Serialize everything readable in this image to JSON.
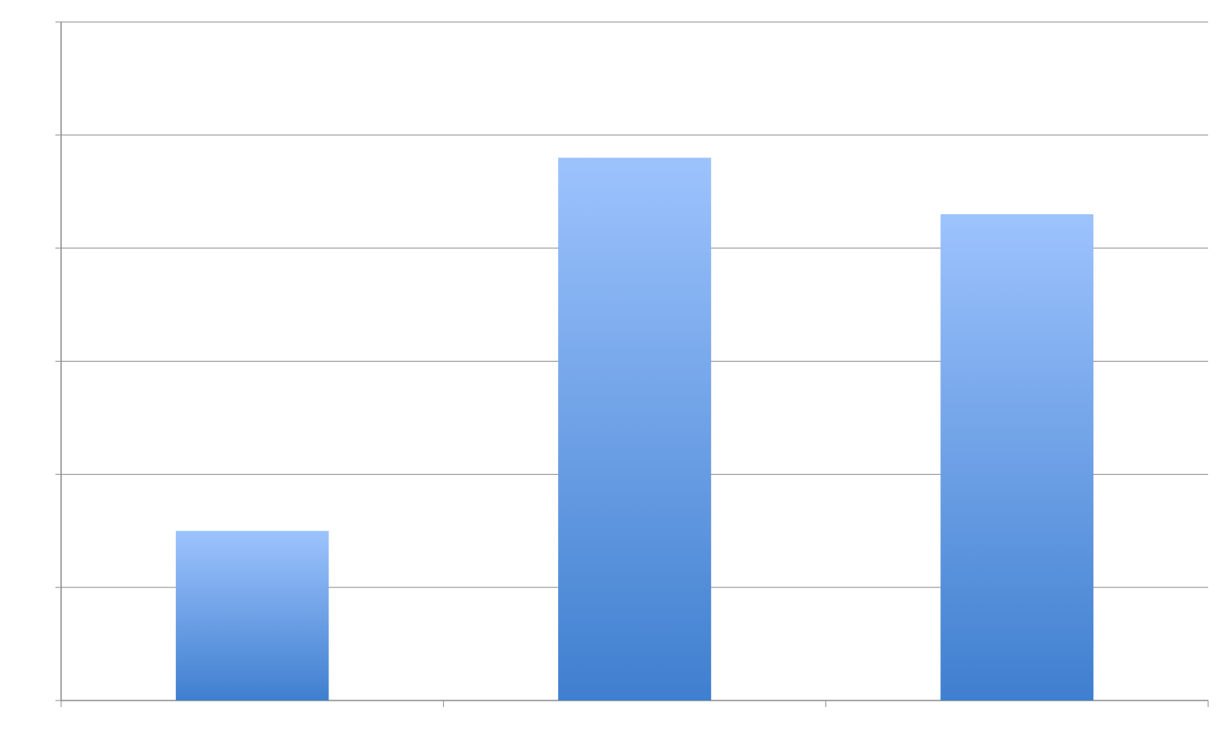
{
  "chart_data": {
    "type": "bar",
    "categories": [
      "",
      "",
      ""
    ],
    "values": [
      1.5,
      4.8,
      4.3
    ],
    "ylim": [
      0,
      6
    ],
    "grid": true,
    "title": "",
    "xlabel": "",
    "ylabel": "",
    "colors": {
      "bar_top": "#9dc3fd",
      "bar_bottom": "#3f7fcf",
      "grid": "#8c8c8c",
      "axis": "#8c8c8c"
    }
  }
}
